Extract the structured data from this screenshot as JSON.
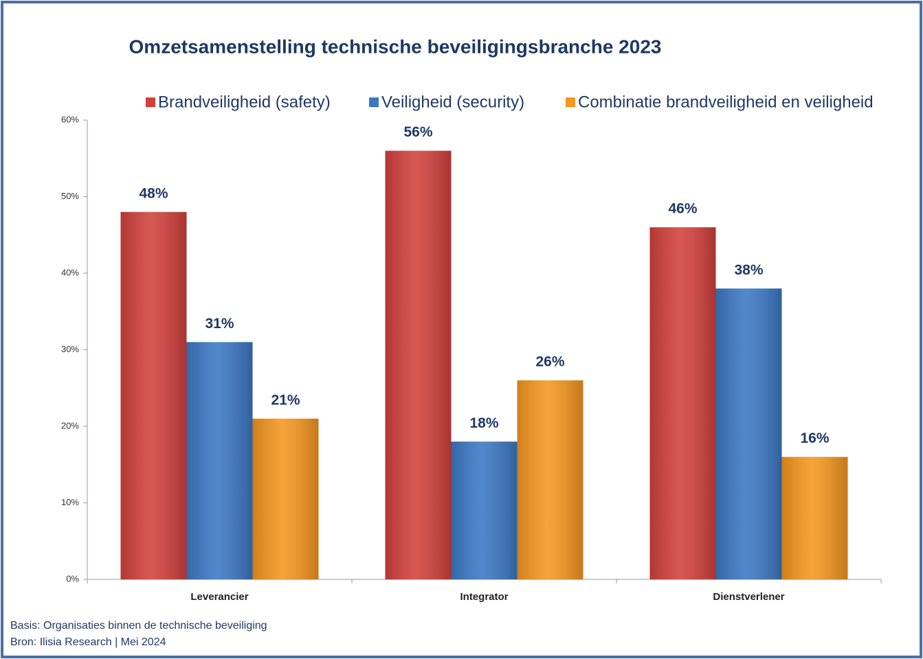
{
  "chart_data": {
    "type": "bar",
    "title": "Omzetsamenstelling technische beveiligingsbranche 2023",
    "categories": [
      "Leverancier",
      "Integrator",
      "Dienstverlener"
    ],
    "series": [
      {
        "name": "Brandveiligheid (safety)",
        "color": "#d2403c",
        "values": [
          48,
          56,
          46
        ],
        "value_labels": [
          "48%",
          "56%",
          "46%"
        ]
      },
      {
        "name": "Veiligheid (security)",
        "color": "#3b78c4",
        "values": [
          31,
          18,
          38
        ],
        "value_labels": [
          "31%",
          "18%",
          "38%"
        ]
      },
      {
        "name": "Combinatie brandveiligheid en veiligheid",
        "color": "#f5961f",
        "values": [
          21,
          26,
          16
        ],
        "value_labels": [
          "21%",
          "26%",
          "16%"
        ]
      }
    ],
    "ylim": [
      0,
      60
    ],
    "yticks": [
      {
        "value": 0,
        "label": "0%"
      },
      {
        "value": 10,
        "label": "10%"
      },
      {
        "value": 20,
        "label": "20%"
      },
      {
        "value": 30,
        "label": "30%"
      },
      {
        "value": 40,
        "label": "40%"
      },
      {
        "value": 50,
        "label": "50%"
      },
      {
        "value": 60,
        "label": "60%"
      }
    ],
    "grid": false,
    "legend": "top",
    "footnotes": [
      "Basis: Organisaties binnen de technische beveiliging",
      "Bron: Ilisia Research | Mei 2024"
    ]
  }
}
